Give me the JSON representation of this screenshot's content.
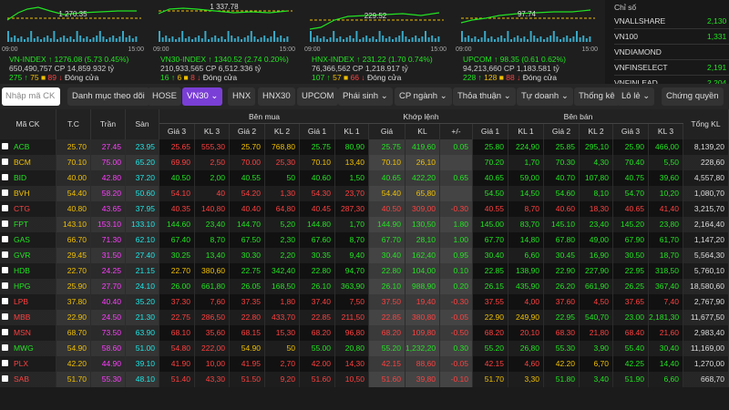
{
  "indices": [
    {
      "chart_label": "1 270.35",
      "time_start": "09:00",
      "time_end": "15:00",
      "headline": "VN-INDEX ↑ 1276.08 (5.73 0.45%)",
      "volume": "650,490,757 CP 14,859.932 tỷ",
      "up": "275 ↑",
      "ref": "75 ■",
      "down": "89 ↓",
      "status": "Đóng cửa"
    },
    {
      "chart_label": "1 337.78",
      "time_start": "09:00",
      "time_end": "15:00",
      "headline": "VN30-INDEX ↑ 1340.52 (2.74 0.20%)",
      "volume": "210,933,565 CP 6,512.336 tỷ",
      "up": "16 ↑",
      "ref": "6 ■",
      "down": "8 ↓",
      "status": "Đóng cửa"
    },
    {
      "chart_label": "229.52",
      "time_start": "09:00",
      "time_end": "15:00",
      "headline": "HNX-INDEX ↑ 231.22 (1.70 0.74%)",
      "volume": "76,366,562 CP 1,218.917 tỷ",
      "up": "107 ↑",
      "ref": "57 ■",
      "down": "66 ↓",
      "status": "Đóng cửa"
    },
    {
      "chart_label": "97.74",
      "time_start": "09:00",
      "time_end": "15:00",
      "headline": "UPCOM ↑ 98.35 (0.61 0.62%)",
      "volume": "94,213,660 CP 1,183.581 tỷ",
      "up": "228 ↑",
      "ref": "128 ■",
      "down": "88 ↓",
      "status": "Đóng cửa"
    }
  ],
  "side_panel": {
    "title": "Chỉ số",
    "items": [
      {
        "name": "VNALLSHARE",
        "value": "2,130"
      },
      {
        "name": "VN100",
        "value": "1,331"
      },
      {
        "name": "VNDIAMOND"
      },
      {
        "name": "VNFINSELECT",
        "value": "2,191"
      },
      {
        "name": "VNFINLEAD",
        "value": "2,204"
      }
    ]
  },
  "toolbar": {
    "search_placeholder": "Nhập mã CK",
    "tabs": [
      "Danh mục theo dõi",
      "HOSE",
      "VN30 ⌄",
      "HNX",
      "HNX30",
      "UPCOM",
      "Phái sinh ⌄",
      "CP ngành ⌄",
      "Thỏa thuận ⌄",
      "Tự doanh ⌄",
      "Thống kê",
      "Lô lẻ ⌄",
      "Chứng quyền"
    ],
    "active_tab": "VN30 ⌄"
  },
  "table": {
    "group_headers": [
      "Bên mua",
      "Khớp lệnh",
      "Bên bán"
    ],
    "headers": [
      "Mã CK",
      "T.C",
      "Trần",
      "Sàn",
      "Giá 3",
      "KL 3",
      "Giá 2",
      "KL 2",
      "Giá 1",
      "KL 1",
      "Giá",
      "KL",
      "+/-",
      "Giá 1",
      "KL 1",
      "Giá 2",
      "KL 2",
      "Giá 3",
      "KL 3",
      "Tổng KL"
    ],
    "rows": [
      [
        "ACB",
        "25.70",
        "27.45",
        "23.95",
        "25.65",
        "555,30",
        "25.70",
        "768,80",
        "25.75",
        "80,90",
        "25.75",
        "419,60",
        "0.05",
        "25.80",
        "224,90",
        "25.85",
        "295,10",
        "25.90",
        "466,00",
        "8,139,20"
      ],
      [
        "BCM",
        "70.10",
        "75.00",
        "65.20",
        "69.90",
        "2,50",
        "70.00",
        "25,30",
        "70.10",
        "13,40",
        "70.10",
        "26,10",
        null,
        "70.20",
        "1,70",
        "70.30",
        "4,30",
        "70.40",
        "5,50",
        "228,60"
      ],
      [
        "BID",
        "40.00",
        "42.80",
        "37.20",
        "40.50",
        "2,00",
        "40.55",
        "50",
        "40.60",
        "1,50",
        "40.65",
        "422,20",
        "0.65",
        "40.65",
        "59,00",
        "40.70",
        "107,80",
        "40.75",
        "39,60",
        "4,557,80"
      ],
      [
        "BVH",
        "54.40",
        "58.20",
        "50.60",
        "54.10",
        "40",
        "54.20",
        "1,30",
        "54.30",
        "23,70",
        "54.40",
        "65,80",
        null,
        "54.50",
        "14,50",
        "54.60",
        "8,10",
        "54.70",
        "10,20",
        "1,080,70"
      ],
      [
        "CTG",
        "40.80",
        "43.65",
        "37.95",
        "40.35",
        "140,80",
        "40.40",
        "64,80",
        "40.45",
        "287,30",
        "40.50",
        "309,00",
        "-0.30",
        "40.55",
        "8,70",
        "40.60",
        "18,30",
        "40.65",
        "41,40",
        "3,215,70"
      ],
      [
        "FPT",
        "143.10",
        "153.10",
        "133.10",
        "144.60",
        "23,40",
        "144.70",
        "5,20",
        "144.80",
        "1,70",
        "144.90",
        "130,50",
        "1.80",
        "145.00",
        "83,70",
        "145.10",
        "23,40",
        "145.20",
        "23,80",
        "2,164,40"
      ],
      [
        "GAS",
        "66.70",
        "71.30",
        "62.10",
        "67.40",
        "8,70",
        "67.50",
        "2,30",
        "67.60",
        "8,70",
        "67.70",
        "28,10",
        "1.00",
        "67.70",
        "14,80",
        "67.80",
        "49,00",
        "67.90",
        "61,70",
        "1,147,20"
      ],
      [
        "GVR",
        "29.45",
        "31.50",
        "27.40",
        "30.25",
        "13,40",
        "30.30",
        "2,20",
        "30.35",
        "9,40",
        "30.40",
        "162,40",
        "0.95",
        "30.40",
        "6,60",
        "30.45",
        "16,90",
        "30.50",
        "18,70",
        "5,564,30"
      ],
      [
        "HDB",
        "22.70",
        "24.25",
        "21.15",
        "22.70",
        "380,60",
        "22.75",
        "342,40",
        "22.80",
        "94,70",
        "22.80",
        "104,00",
        "0.10",
        "22.85",
        "138,90",
        "22.90",
        "227,90",
        "22.95",
        "318,50",
        "5,760,10"
      ],
      [
        "HPG",
        "25.90",
        "27.70",
        "24.10",
        "26.00",
        "661,80",
        "26.05",
        "168,50",
        "26.10",
        "363,90",
        "26.10",
        "988,90",
        "0.20",
        "26.15",
        "435,90",
        "26.20",
        "661,90",
        "26.25",
        "367,40",
        "18,580,60"
      ],
      [
        "LPB",
        "37.80",
        "40.40",
        "35.20",
        "37.30",
        "7,60",
        "37.35",
        "1,80",
        "37.40",
        "7,50",
        "37.50",
        "19,40",
        "-0.30",
        "37.55",
        "4,00",
        "37.60",
        "4,50",
        "37.65",
        "7,40",
        "2,767,90"
      ],
      [
        "MBB",
        "22.90",
        "24.50",
        "21.30",
        "22.75",
        "286,50",
        "22.80",
        "433,70",
        "22.85",
        "211,50",
        "22.85",
        "380,80",
        "-0.05",
        "22.90",
        "249,90",
        "22.95",
        "540,70",
        "23.00",
        "2,181,30",
        "11,677,50"
      ],
      [
        "MSN",
        "68.70",
        "73.50",
        "63.90",
        "68.10",
        "35,60",
        "68.15",
        "15,30",
        "68.20",
        "96,80",
        "68.20",
        "109,80",
        "-0.50",
        "68.20",
        "20,10",
        "68.30",
        "21,80",
        "68.40",
        "21,60",
        "2,983,40"
      ],
      [
        "MWG",
        "54.90",
        "58.60",
        "51.00",
        "54.80",
        "222,00",
        "54.90",
        "50",
        "55.00",
        "20,80",
        "55.20",
        "1,232,20",
        "0.30",
        "55.20",
        "26,80",
        "55.30",
        "3,90",
        "55.40",
        "30,40",
        "11,169,00"
      ],
      [
        "PLX",
        "42.20",
        "44.90",
        "39.10",
        "41.90",
        "10,00",
        "41.95",
        "2,70",
        "42.00",
        "14,30",
        "42.15",
        "88,60",
        "-0.05",
        "42.15",
        "4,60",
        "42.20",
        "6,70",
        "42.25",
        "14,40",
        "1,270,00"
      ],
      [
        "SAB",
        "51.70",
        "55.30",
        "48.10",
        "51.40",
        "43,30",
        "51.50",
        "9,20",
        "51.60",
        "10,50",
        "51.60",
        "39,80",
        "-0.10",
        "51.70",
        "3,30",
        "51.80",
        "3,40",
        "51.90",
        "6,60",
        "668,70"
      ]
    ]
  }
}
